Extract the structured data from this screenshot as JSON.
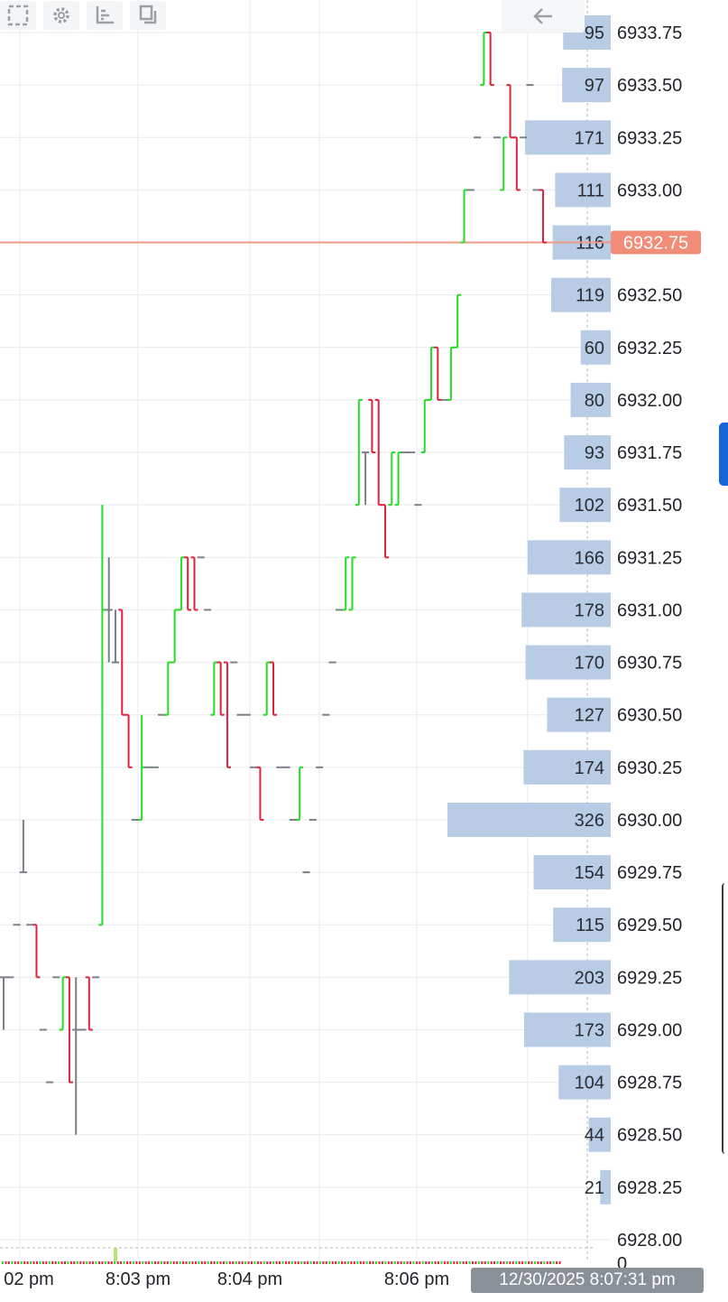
{
  "toolbar": {
    "icons": [
      "select-region-icon",
      "settings-gear-icon",
      "axis-icon",
      "layout-icon",
      "back-arrow-icon"
    ]
  },
  "colors": {
    "up": "#22dd22",
    "down": "#e0213c",
    "neutral": "#7a7f87",
    "volume_bar": "#b8cce6",
    "last_price_line": "#f09a86",
    "last_price_badge": "#f08c78",
    "time_badge": "#8a9097",
    "grid": "#e8eaed"
  },
  "crosshair_time_label": "12/30/2025 8:07:31 pm",
  "chart_data": {
    "type": "ohlc",
    "title": "",
    "price_axis": {
      "min": 6928.0,
      "max": 6933.75,
      "tick_step": 0.25,
      "tick_labels": [
        "6933.75",
        "6933.50",
        "6933.25",
        "6933.00",
        "6932.75",
        "6932.50",
        "6932.25",
        "6932.00",
        "6931.75",
        "6931.50",
        "6931.25",
        "6931.00",
        "6930.75",
        "6930.50",
        "6930.25",
        "6930.00",
        "6929.75",
        "6929.50",
        "6929.25",
        "6929.00",
        "6928.75",
        "6928.50",
        "6928.25",
        "6928.00"
      ]
    },
    "time_axis": {
      "labels": [
        "02 pm",
        "8:03 pm",
        "8:04 pm",
        "8:06 pm"
      ]
    },
    "last_price": {
      "value": 6932.75,
      "label": "6932.75"
    },
    "volume_profile": {
      "zero_label": "0",
      "levels": [
        {
          "price": 6933.75,
          "volume": 95
        },
        {
          "price": 6933.5,
          "volume": 97
        },
        {
          "price": 6933.25,
          "volume": 171
        },
        {
          "price": 6933.0,
          "volume": 111
        },
        {
          "price": 6932.75,
          "volume": 116
        },
        {
          "price": 6932.5,
          "volume": 119
        },
        {
          "price": 6932.25,
          "volume": 60
        },
        {
          "price": 6932.0,
          "volume": 80
        },
        {
          "price": 6931.75,
          "volume": 93
        },
        {
          "price": 6931.5,
          "volume": 102
        },
        {
          "price": 6931.25,
          "volume": 166
        },
        {
          "price": 6931.0,
          "volume": 178
        },
        {
          "price": 6930.75,
          "volume": 170
        },
        {
          "price": 6930.5,
          "volume": 127
        },
        {
          "price": 6930.25,
          "volume": 174
        },
        {
          "price": 6930.0,
          "volume": 326
        },
        {
          "price": 6929.75,
          "volume": 154
        },
        {
          "price": 6929.5,
          "volume": 115
        },
        {
          "price": 6929.25,
          "volume": 203
        },
        {
          "price": 6929.0,
          "volume": 173
        },
        {
          "price": 6928.75,
          "volume": 104
        },
        {
          "price": 6928.5,
          "volume": 44
        },
        {
          "price": 6928.25,
          "volume": 21
        }
      ]
    },
    "bars": [
      {
        "o": 6929.25,
        "h": 6929.25,
        "l": 6929.0,
        "c": 6929.25
      },
      {
        "o": 6929.25,
        "h": 6929.25,
        "l": 6929.25,
        "c": 6929.25
      },
      {
        "o": 6929.5,
        "h": 6929.5,
        "l": 6929.5,
        "c": 6929.5
      },
      {
        "o": 6929.75,
        "h": 6930.0,
        "l": 6929.75,
        "c": 6929.75
      },
      {
        "o": 6929.5,
        "h": 6929.5,
        "l": 6929.5,
        "c": 6929.5
      },
      {
        "o": 6929.5,
        "h": 6929.5,
        "l": 6929.25,
        "c": 6929.25
      },
      {
        "o": 6929.0,
        "h": 6929.0,
        "l": 6929.0,
        "c": 6929.0
      },
      {
        "o": 6928.75,
        "h": 6928.75,
        "l": 6928.75,
        "c": 6928.75
      },
      {
        "o": 6929.25,
        "h": 6929.25,
        "l": 6929.25,
        "c": 6929.25
      },
      {
        "o": 6929.0,
        "h": 6929.25,
        "l": 6929.0,
        "c": 6929.25
      },
      {
        "o": 6929.25,
        "h": 6929.25,
        "l": 6928.75,
        "c": 6928.75
      },
      {
        "o": 6929.0,
        "h": 6929.25,
        "l": 6928.5,
        "c": 6929.0
      },
      {
        "o": 6929.0,
        "h": 6929.0,
        "l": 6929.0,
        "c": 6929.0
      },
      {
        "o": 6929.25,
        "h": 6929.25,
        "l": 6929.0,
        "c": 6929.0
      },
      {
        "o": 6929.25,
        "h": 6929.25,
        "l": 6929.25,
        "c": 6929.25
      },
      {
        "o": 6929.5,
        "h": 6931.5,
        "l": 6929.5,
        "c": 6931.0
      },
      {
        "o": 6931.0,
        "h": 6931.25,
        "l": 6930.75,
        "c": 6931.0
      },
      {
        "o": 6930.75,
        "h": 6931.0,
        "l": 6930.75,
        "c": 6930.75
      },
      {
        "o": 6931.0,
        "h": 6931.0,
        "l": 6930.5,
        "c": 6930.5
      },
      {
        "o": 6930.5,
        "h": 6930.5,
        "l": 6930.25,
        "c": 6930.25
      },
      {
        "o": 6930.0,
        "h": 6930.0,
        "l": 6930.0,
        "c": 6930.0
      },
      {
        "o": 6930.0,
        "h": 6930.5,
        "l": 6930.0,
        "c": 6930.25
      },
      {
        "o": 6930.25,
        "h": 6930.25,
        "l": 6930.25,
        "c": 6930.25
      },
      {
        "o": 6930.25,
        "h": 6930.25,
        "l": 6930.25,
        "c": 6930.25
      },
      {
        "o": 6930.5,
        "h": 6930.5,
        "l": 6930.5,
        "c": 6930.5
      },
      {
        "o": 6930.5,
        "h": 6930.75,
        "l": 6930.5,
        "c": 6930.75
      },
      {
        "o": 6930.75,
        "h": 6931.0,
        "l": 6930.75,
        "c": 6931.0
      },
      {
        "o": 6931.0,
        "h": 6931.25,
        "l": 6931.0,
        "c": 6931.25
      },
      {
        "o": 6931.25,
        "h": 6931.25,
        "l": 6931.0,
        "c": 6931.0
      },
      {
        "o": 6931.25,
        "h": 6931.25,
        "l": 6931.0,
        "c": 6931.0
      },
      {
        "o": 6931.25,
        "h": 6931.25,
        "l": 6931.25,
        "c": 6931.25
      },
      {
        "o": 6931.0,
        "h": 6931.0,
        "l": 6931.0,
        "c": 6931.0
      },
      {
        "o": 6930.5,
        "h": 6930.75,
        "l": 6930.5,
        "c": 6930.75
      },
      {
        "o": 6930.75,
        "h": 6930.75,
        "l": 6930.5,
        "c": 6930.5
      },
      {
        "o": 6930.75,
        "h": 6930.75,
        "l": 6930.25,
        "c": 6930.25
      },
      {
        "o": 6930.75,
        "h": 6930.75,
        "l": 6930.75,
        "c": 6930.75
      },
      {
        "o": 6930.5,
        "h": 6930.5,
        "l": 6930.5,
        "c": 6930.5
      },
      {
        "o": 6930.5,
        "h": 6930.5,
        "l": 6930.5,
        "c": 6930.5
      },
      {
        "o": 6930.25,
        "h": 6930.25,
        "l": 6930.25,
        "c": 6930.25
      },
      {
        "o": 6930.25,
        "h": 6930.25,
        "l": 6930.0,
        "c": 6930.0
      },
      {
        "o": 6930.5,
        "h": 6930.75,
        "l": 6930.5,
        "c": 6930.75
      },
      {
        "o": 6930.75,
        "h": 6930.75,
        "l": 6930.5,
        "c": 6930.5
      },
      {
        "o": 6930.25,
        "h": 6930.25,
        "l": 6930.25,
        "c": 6930.25
      },
      {
        "o": 6930.25,
        "h": 6930.25,
        "l": 6930.25,
        "c": 6930.25
      },
      {
        "o": 6930.0,
        "h": 6930.0,
        "l": 6930.0,
        "c": 6930.0
      },
      {
        "o": 6930.0,
        "h": 6930.25,
        "l": 6930.0,
        "c": 6930.25
      },
      {
        "o": 6929.75,
        "h": 6929.75,
        "l": 6929.75,
        "c": 6929.75
      },
      {
        "o": 6930.0,
        "h": 6930.0,
        "l": 6930.0,
        "c": 6930.0
      },
      {
        "o": 6930.25,
        "h": 6930.25,
        "l": 6930.25,
        "c": 6930.25
      },
      {
        "o": 6930.5,
        "h": 6930.5,
        "l": 6930.5,
        "c": 6930.5
      },
      {
        "o": 6930.75,
        "h": 6930.75,
        "l": 6930.75,
        "c": 6930.75
      },
      {
        "o": 6931.0,
        "h": 6931.0,
        "l": 6931.0,
        "c": 6931.0
      },
      {
        "o": 6931.0,
        "h": 6931.25,
        "l": 6931.0,
        "c": 6931.25
      },
      {
        "o": 6931.0,
        "h": 6931.25,
        "l": 6931.0,
        "c": 6931.25
      },
      {
        "o": 6931.5,
        "h": 6932.0,
        "l": 6931.5,
        "c": 6932.0
      },
      {
        "o": 6931.75,
        "h": 6931.75,
        "l": 6931.5,
        "c": 6931.75
      },
      {
        "o": 6932.0,
        "h": 6932.0,
        "l": 6931.75,
        "c": 6931.75
      },
      {
        "o": 6932.0,
        "h": 6932.0,
        "l": 6931.5,
        "c": 6931.5
      },
      {
        "o": 6931.5,
        "h": 6931.5,
        "l": 6931.25,
        "c": 6931.25
      },
      {
        "o": 6931.5,
        "h": 6931.75,
        "l": 6931.5,
        "c": 6931.75
      },
      {
        "o": 6931.5,
        "h": 6931.75,
        "l": 6931.5,
        "c": 6931.75
      },
      {
        "o": 6931.75,
        "h": 6931.75,
        "l": 6931.75,
        "c": 6931.75
      },
      {
        "o": 6931.75,
        "h": 6931.75,
        "l": 6931.75,
        "c": 6931.75
      },
      {
        "o": 6931.5,
        "h": 6931.5,
        "l": 6931.5,
        "c": 6931.5
      },
      {
        "o": 6931.75,
        "h": 6932.0,
        "l": 6931.75,
        "c": 6932.0
      },
      {
        "o": 6932.0,
        "h": 6932.25,
        "l": 6932.0,
        "c": 6932.25
      },
      {
        "o": 6932.25,
        "h": 6932.25,
        "l": 6932.0,
        "c": 6932.0
      },
      {
        "o": 6932.0,
        "h": 6932.0,
        "l": 6932.0,
        "c": 6932.0
      },
      {
        "o": 6932.0,
        "h": 6932.25,
        "l": 6932.0,
        "c": 6932.25
      },
      {
        "o": 6932.25,
        "h": 6932.5,
        "l": 6932.25,
        "c": 6932.5
      },
      {
        "o": 6932.75,
        "h": 6933.0,
        "l": 6932.75,
        "c": 6933.0
      },
      {
        "o": 6933.0,
        "h": 6933.0,
        "l": 6933.0,
        "c": 6933.0
      },
      {
        "o": 6933.25,
        "h": 6933.25,
        "l": 6933.25,
        "c": 6933.25
      },
      {
        "o": 6933.5,
        "h": 6933.75,
        "l": 6933.5,
        "c": 6933.75
      },
      {
        "o": 6933.75,
        "h": 6933.75,
        "l": 6933.5,
        "c": 6933.5
      },
      {
        "o": 6933.25,
        "h": 6933.25,
        "l": 6933.25,
        "c": 6933.25
      },
      {
        "o": 6933.0,
        "h": 6933.25,
        "l": 6933.0,
        "c": 6933.25
      },
      {
        "o": 6933.5,
        "h": 6933.5,
        "l": 6933.25,
        "c": 6933.25
      },
      {
        "o": 6933.25,
        "h": 6933.25,
        "l": 6933.0,
        "c": 6933.0
      },
      {
        "o": 6933.25,
        "h": 6933.25,
        "l": 6933.25,
        "c": 6933.25
      },
      {
        "o": 6933.5,
        "h": 6933.5,
        "l": 6933.5,
        "c": 6933.5
      },
      {
        "o": 6933.0,
        "h": 6933.0,
        "l": 6933.0,
        "c": 6933.0
      },
      {
        "o": 6933.0,
        "h": 6933.0,
        "l": 6932.75,
        "c": 6932.75
      }
    ]
  }
}
